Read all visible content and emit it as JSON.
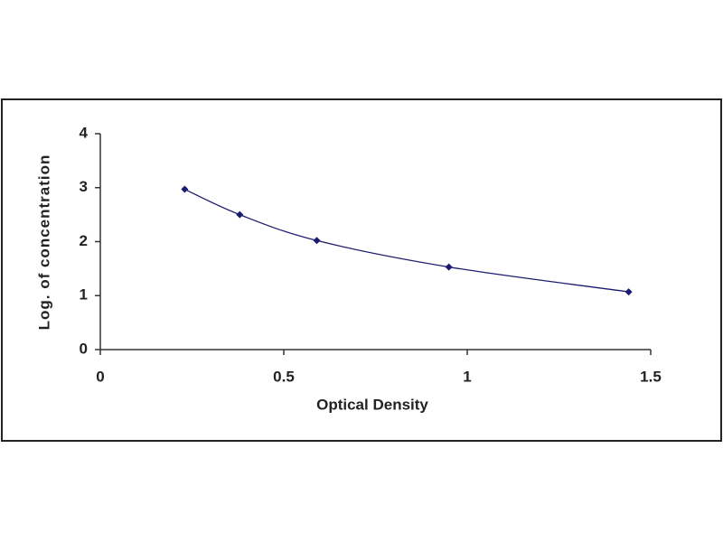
{
  "chart_data": {
    "type": "scatter",
    "x_label": "Optical Density",
    "y_label": "Log. of concentration",
    "x": [
      0.23,
      0.38,
      0.59,
      0.95,
      1.44
    ],
    "values": [
      2.97,
      2.5,
      2.02,
      1.53,
      1.07
    ],
    "color": "#1a1a6e",
    "smooth_line": true,
    "xlim": [
      0,
      1.5
    ],
    "xticks": [
      0,
      0.5,
      1,
      1.5
    ],
    "ylim": [
      0,
      4
    ],
    "yticks": [
      0,
      1,
      2,
      3,
      4
    ]
  }
}
